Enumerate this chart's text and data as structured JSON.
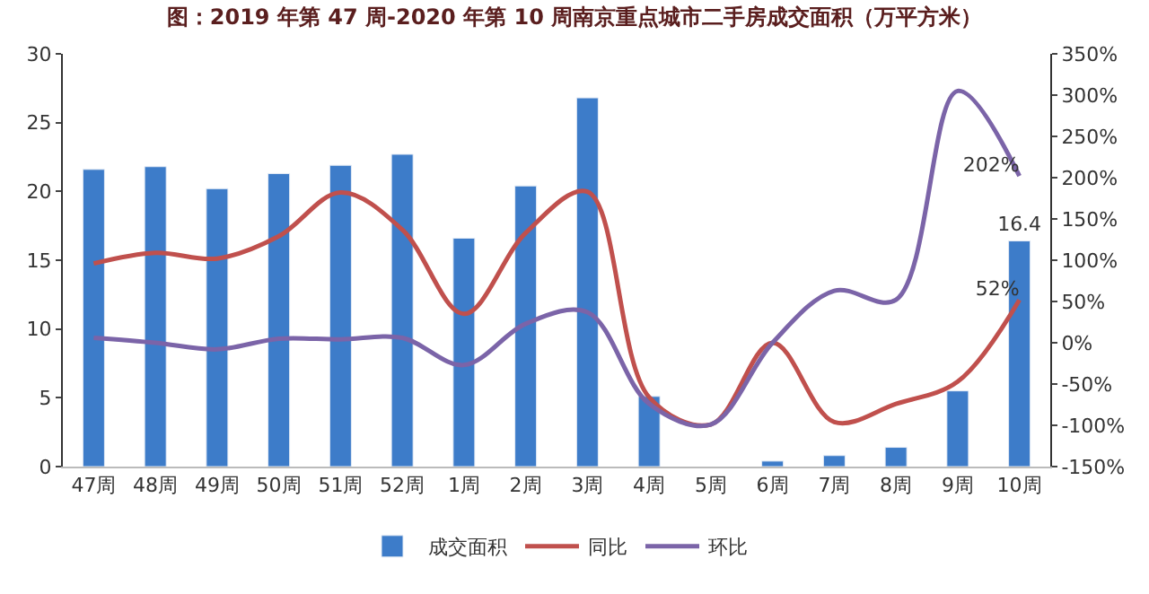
{
  "chart_data": {
    "type": "bar",
    "title": "图：2019 年第 47 周-2020 年第 10 周南京重点城市二手房成交面积（万平方米）",
    "categories": [
      "47周",
      "48周",
      "49周",
      "50周",
      "51周",
      "52周",
      "1周",
      "2周",
      "3周",
      "4周",
      "5周",
      "6周",
      "7周",
      "8周",
      "9周",
      "10周"
    ],
    "series": [
      {
        "name": "成交面积",
        "color": "#3d7cc9",
        "values": [
          21.6,
          21.8,
          20.2,
          21.3,
          21.9,
          22.7,
          16.6,
          20.4,
          26.8,
          5.1,
          null,
          0.4,
          0.8,
          1.4,
          5.5,
          16.4
        ],
        "value_labels": [
          null,
          null,
          null,
          null,
          null,
          null,
          null,
          null,
          null,
          null,
          null,
          null,
          null,
          null,
          null,
          "16.4"
        ]
      },
      {
        "name": "同比",
        "type": "line",
        "axis": "y2",
        "color": "#c0504d",
        "values": [
          96,
          109,
          102,
          129,
          182,
          137,
          35,
          133,
          183,
          -66,
          -99,
          0,
          -96,
          -74,
          -47,
          52
        ],
        "value_labels": [
          null,
          null,
          null,
          null,
          null,
          null,
          null,
          null,
          null,
          null,
          null,
          null,
          null,
          null,
          null,
          "52%"
        ]
      },
      {
        "name": "环比",
        "type": "line",
        "axis": "y2",
        "color": "#7b64a8",
        "values": [
          6,
          0,
          -8,
          5,
          4,
          6,
          -27,
          23,
          37,
          -74,
          -99,
          0,
          63,
          52,
          305,
          202
        ],
        "value_labels": [
          null,
          null,
          null,
          null,
          null,
          null,
          null,
          null,
          null,
          null,
          null,
          null,
          null,
          null,
          null,
          "202%"
        ]
      }
    ],
    "ylim": [
      0,
      30
    ],
    "yticks": [
      0,
      5,
      10,
      15,
      20,
      25,
      30
    ],
    "y2lim": [
      -150,
      350
    ],
    "y2ticks": [
      {
        "value": -150,
        "label": "-150%"
      },
      {
        "value": -100,
        "label": "-100%"
      },
      {
        "value": -50,
        "label": "-50%"
      },
      {
        "value": 0,
        "label": "0%"
      },
      {
        "value": 50,
        "label": "50%"
      },
      {
        "value": 100,
        "label": "100%"
      },
      {
        "value": 150,
        "label": "150%"
      },
      {
        "value": 200,
        "label": "200%"
      },
      {
        "value": 250,
        "label": "250%"
      },
      {
        "value": 300,
        "label": "300%"
      },
      {
        "value": 350,
        "label": "350%"
      }
    ],
    "legend": "bottom"
  }
}
